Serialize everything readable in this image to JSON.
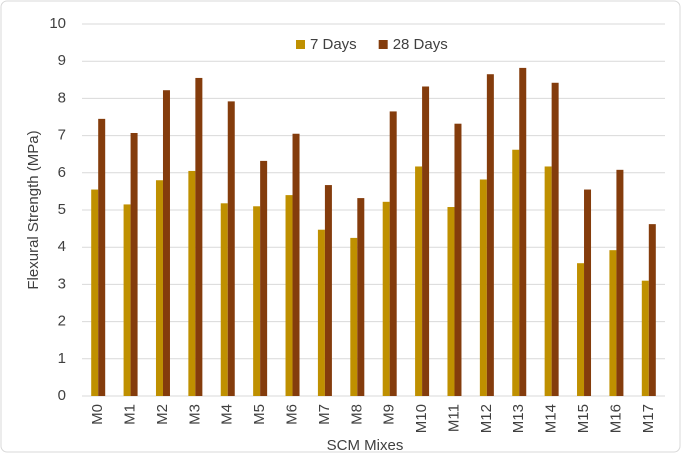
{
  "chart_data": {
    "type": "bar",
    "x_label": "SCM Mixes",
    "y_label": "Flexural Strength (MPa)",
    "categories": [
      "M0",
      "M1",
      "M2",
      "M3",
      "M4",
      "M5",
      "M6",
      "M7",
      "M8",
      "M9",
      "M10",
      "M11",
      "M12",
      "M13",
      "M14",
      "M15",
      "M16",
      "M17"
    ],
    "series": [
      {
        "name": "7 Days",
        "color": "#bf9000",
        "values": [
          5.55,
          5.15,
          5.8,
          6.05,
          5.18,
          5.1,
          5.4,
          4.47,
          4.25,
          5.22,
          6.17,
          5.08,
          5.82,
          6.62,
          6.17,
          3.57,
          3.92,
          3.1
        ]
      },
      {
        "name": "28 Days",
        "color": "#843c0c",
        "values": [
          7.45,
          7.07,
          8.22,
          8.55,
          7.92,
          6.32,
          7.05,
          5.67,
          5.32,
          7.65,
          8.32,
          7.32,
          8.65,
          8.82,
          8.42,
          5.55,
          6.08,
          4.62
        ]
      }
    ],
    "ylim": [
      0,
      10
    ],
    "yticks": [
      0,
      1,
      2,
      3,
      4,
      5,
      6,
      7,
      8,
      9,
      10
    ],
    "grid": true,
    "legend": "top"
  }
}
